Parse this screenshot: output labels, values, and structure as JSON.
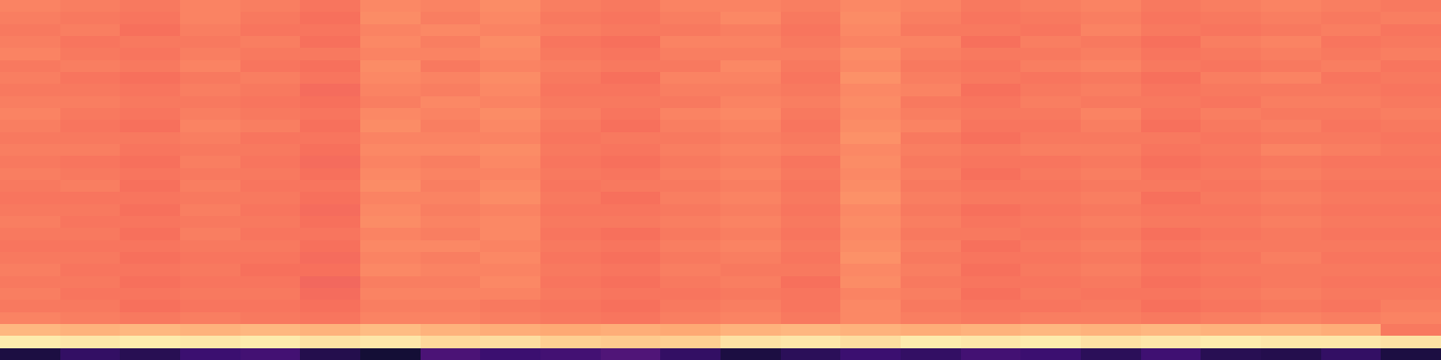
{
  "chart_data": {
    "type": "heatmap",
    "color": "magma",
    "zlim": [
      0,
      1
    ],
    "tick_labels": false,
    "cells": [
      [
        0.74,
        0.73,
        0.72,
        0.74,
        0.73,
        0.71,
        0.75,
        0.74,
        0.76,
        0.73,
        0.72,
        0.74,
        0.74,
        0.73,
        0.75,
        0.74,
        0.72,
        0.73,
        0.74,
        0.72,
        0.73,
        0.74,
        0.73,
        0.72
      ],
      [
        0.73,
        0.72,
        0.71,
        0.74,
        0.72,
        0.7,
        0.76,
        0.73,
        0.75,
        0.72,
        0.71,
        0.73,
        0.75,
        0.72,
        0.76,
        0.73,
        0.71,
        0.72,
        0.73,
        0.71,
        0.72,
        0.73,
        0.72,
        0.73
      ],
      [
        0.72,
        0.73,
        0.7,
        0.73,
        0.71,
        0.71,
        0.74,
        0.75,
        0.74,
        0.73,
        0.72,
        0.72,
        0.73,
        0.71,
        0.75,
        0.72,
        0.72,
        0.71,
        0.74,
        0.72,
        0.71,
        0.72,
        0.73,
        0.71
      ],
      [
        0.73,
        0.71,
        0.72,
        0.72,
        0.73,
        0.7,
        0.75,
        0.73,
        0.76,
        0.71,
        0.7,
        0.74,
        0.74,
        0.72,
        0.74,
        0.74,
        0.7,
        0.73,
        0.72,
        0.7,
        0.73,
        0.74,
        0.71,
        0.72
      ],
      [
        0.74,
        0.72,
        0.71,
        0.73,
        0.72,
        0.72,
        0.74,
        0.74,
        0.75,
        0.72,
        0.71,
        0.73,
        0.73,
        0.73,
        0.76,
        0.73,
        0.72,
        0.72,
        0.73,
        0.71,
        0.72,
        0.73,
        0.72,
        0.73
      ],
      [
        0.72,
        0.73,
        0.72,
        0.74,
        0.71,
        0.7,
        0.76,
        0.72,
        0.74,
        0.73,
        0.72,
        0.72,
        0.75,
        0.72,
        0.75,
        0.72,
        0.71,
        0.73,
        0.74,
        0.72,
        0.71,
        0.72,
        0.73,
        0.71
      ],
      [
        0.73,
        0.71,
        0.7,
        0.72,
        0.73,
        0.71,
        0.75,
        0.74,
        0.76,
        0.72,
        0.7,
        0.74,
        0.74,
        0.71,
        0.77,
        0.73,
        0.72,
        0.71,
        0.72,
        0.7,
        0.73,
        0.74,
        0.71,
        0.72
      ],
      [
        0.72,
        0.72,
        0.71,
        0.73,
        0.72,
        0.69,
        0.74,
        0.73,
        0.75,
        0.71,
        0.71,
        0.73,
        0.73,
        0.72,
        0.75,
        0.74,
        0.7,
        0.72,
        0.73,
        0.71,
        0.72,
        0.72,
        0.72,
        0.71
      ],
      [
        0.73,
        0.73,
        0.72,
        0.72,
        0.71,
        0.7,
        0.73,
        0.75,
        0.74,
        0.72,
        0.72,
        0.72,
        0.74,
        0.73,
        0.76,
        0.72,
        0.71,
        0.73,
        0.72,
        0.72,
        0.71,
        0.73,
        0.73,
        0.72
      ],
      [
        0.74,
        0.72,
        0.71,
        0.73,
        0.72,
        0.71,
        0.75,
        0.74,
        0.76,
        0.73,
        0.71,
        0.74,
        0.75,
        0.72,
        0.75,
        0.73,
        0.72,
        0.72,
        0.74,
        0.71,
        0.73,
        0.72,
        0.72,
        0.73
      ],
      [
        0.73,
        0.71,
        0.7,
        0.74,
        0.73,
        0.7,
        0.76,
        0.73,
        0.75,
        0.72,
        0.7,
        0.73,
        0.74,
        0.71,
        0.76,
        0.74,
        0.71,
        0.71,
        0.73,
        0.7,
        0.72,
        0.73,
        0.71,
        0.72
      ],
      [
        0.72,
        0.72,
        0.72,
        0.73,
        0.71,
        0.71,
        0.74,
        0.74,
        0.74,
        0.71,
        0.72,
        0.72,
        0.73,
        0.72,
        0.77,
        0.72,
        0.7,
        0.72,
        0.72,
        0.72,
        0.71,
        0.72,
        0.72,
        0.71
      ],
      [
        0.73,
        0.73,
        0.71,
        0.72,
        0.72,
        0.7,
        0.75,
        0.75,
        0.76,
        0.72,
        0.71,
        0.73,
        0.74,
        0.73,
        0.75,
        0.73,
        0.72,
        0.73,
        0.73,
        0.71,
        0.72,
        0.74,
        0.73,
        0.72
      ],
      [
        0.72,
        0.71,
        0.7,
        0.73,
        0.71,
        0.69,
        0.74,
        0.73,
        0.75,
        0.71,
        0.7,
        0.72,
        0.73,
        0.71,
        0.76,
        0.72,
        0.71,
        0.71,
        0.72,
        0.7,
        0.71,
        0.72,
        0.71,
        0.71
      ],
      [
        0.73,
        0.72,
        0.71,
        0.72,
        0.72,
        0.7,
        0.75,
        0.74,
        0.74,
        0.72,
        0.71,
        0.73,
        0.74,
        0.72,
        0.75,
        0.73,
        0.7,
        0.72,
        0.73,
        0.71,
        0.72,
        0.73,
        0.72,
        0.72
      ],
      [
        0.72,
        0.73,
        0.7,
        0.73,
        0.71,
        0.71,
        0.76,
        0.73,
        0.75,
        0.71,
        0.72,
        0.72,
        0.73,
        0.71,
        0.76,
        0.72,
        0.71,
        0.71,
        0.72,
        0.72,
        0.71,
        0.72,
        0.71,
        0.71
      ],
      [
        0.71,
        0.71,
        0.71,
        0.72,
        0.72,
        0.7,
        0.74,
        0.74,
        0.76,
        0.72,
        0.7,
        0.73,
        0.74,
        0.72,
        0.77,
        0.73,
        0.72,
        0.72,
        0.73,
        0.7,
        0.72,
        0.73,
        0.72,
        0.72
      ],
      [
        0.72,
        0.72,
        0.7,
        0.73,
        0.71,
        0.69,
        0.75,
        0.73,
        0.74,
        0.71,
        0.71,
        0.72,
        0.73,
        0.71,
        0.75,
        0.72,
        0.7,
        0.71,
        0.72,
        0.71,
        0.71,
        0.72,
        0.71,
        0.71
      ],
      [
        0.73,
        0.71,
        0.71,
        0.72,
        0.72,
        0.7,
        0.76,
        0.74,
        0.75,
        0.72,
        0.72,
        0.73,
        0.74,
        0.72,
        0.76,
        0.73,
        0.71,
        0.72,
        0.73,
        0.72,
        0.72,
        0.73,
        0.72,
        0.72
      ],
      [
        0.72,
        0.72,
        0.7,
        0.73,
        0.71,
        0.71,
        0.74,
        0.73,
        0.75,
        0.71,
        0.7,
        0.72,
        0.73,
        0.71,
        0.75,
        0.72,
        0.72,
        0.71,
        0.72,
        0.7,
        0.71,
        0.72,
        0.71,
        0.71
      ],
      [
        0.71,
        0.71,
        0.71,
        0.72,
        0.72,
        0.7,
        0.75,
        0.75,
        0.74,
        0.72,
        0.71,
        0.73,
        0.74,
        0.72,
        0.76,
        0.73,
        0.7,
        0.72,
        0.73,
        0.71,
        0.72,
        0.72,
        0.72,
        0.72
      ],
      [
        0.72,
        0.72,
        0.7,
        0.71,
        0.71,
        0.69,
        0.74,
        0.73,
        0.75,
        0.71,
        0.7,
        0.72,
        0.73,
        0.71,
        0.77,
        0.72,
        0.71,
        0.71,
        0.72,
        0.7,
        0.71,
        0.73,
        0.71,
        0.71
      ],
      [
        0.73,
        0.71,
        0.71,
        0.72,
        0.7,
        0.7,
        0.75,
        0.74,
        0.74,
        0.72,
        0.71,
        0.73,
        0.72,
        0.72,
        0.75,
        0.73,
        0.7,
        0.72,
        0.73,
        0.71,
        0.72,
        0.72,
        0.72,
        0.72
      ],
      [
        0.72,
        0.72,
        0.7,
        0.71,
        0.71,
        0.68,
        0.73,
        0.73,
        0.75,
        0.71,
        0.7,
        0.72,
        0.73,
        0.7,
        0.76,
        0.72,
        0.71,
        0.71,
        0.72,
        0.7,
        0.71,
        0.72,
        0.71,
        0.71
      ],
      [
        0.73,
        0.71,
        0.71,
        0.72,
        0.72,
        0.69,
        0.74,
        0.74,
        0.74,
        0.72,
        0.71,
        0.71,
        0.72,
        0.71,
        0.74,
        0.73,
        0.7,
        0.72,
        0.71,
        0.71,
        0.72,
        0.73,
        0.72,
        0.72
      ],
      [
        0.72,
        0.72,
        0.7,
        0.71,
        0.71,
        0.7,
        0.73,
        0.73,
        0.72,
        0.71,
        0.7,
        0.72,
        0.73,
        0.71,
        0.75,
        0.72,
        0.71,
        0.71,
        0.72,
        0.7,
        0.71,
        0.72,
        0.71,
        0.73
      ],
      [
        0.74,
        0.73,
        0.72,
        0.73,
        0.72,
        0.71,
        0.74,
        0.74,
        0.73,
        0.72,
        0.71,
        0.73,
        0.74,
        0.72,
        0.75,
        0.73,
        0.72,
        0.73,
        0.73,
        0.72,
        0.73,
        0.74,
        0.73,
        0.74
      ],
      [
        0.85,
        0.84,
        0.85,
        0.84,
        0.85,
        0.84,
        0.86,
        0.84,
        0.83,
        0.82,
        0.83,
        0.82,
        0.84,
        0.85,
        0.84,
        0.83,
        0.84,
        0.85,
        0.84,
        0.85,
        0.84,
        0.84,
        0.83,
        0.72
      ],
      [
        0.96,
        0.95,
        0.96,
        0.95,
        0.96,
        0.94,
        0.95,
        0.92,
        0.93,
        0.9,
        0.89,
        0.9,
        0.94,
        0.95,
        0.93,
        0.96,
        0.95,
        0.96,
        0.94,
        0.95,
        0.96,
        0.95,
        0.95,
        0.94
      ],
      [
        0.12,
        0.18,
        0.15,
        0.2,
        0.22,
        0.14,
        0.1,
        0.24,
        0.2,
        0.22,
        0.25,
        0.18,
        0.12,
        0.16,
        0.2,
        0.18,
        0.22,
        0.2,
        0.16,
        0.21,
        0.15,
        0.14,
        0.18,
        0.12
      ]
    ]
  }
}
